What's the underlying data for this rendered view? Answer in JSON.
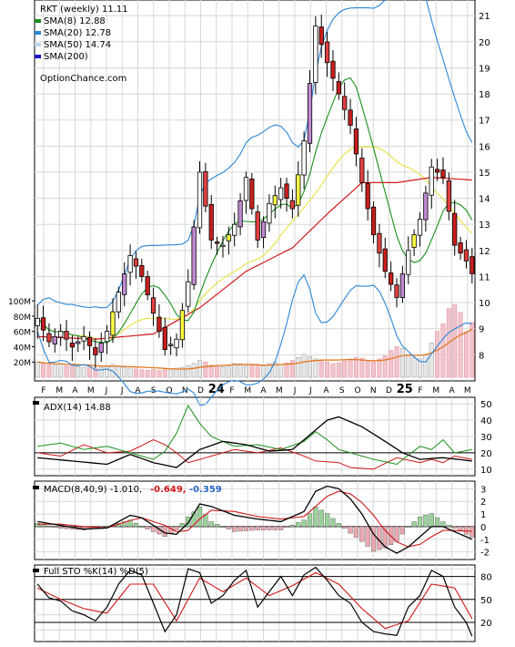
{
  "chart_data": [
    {
      "type": "candlestick",
      "title": "RKT (weekly) 11.11",
      "legend": [
        {
          "label": "SMA(8) 12.88",
          "color": "#1a8f1a"
        },
        {
          "label": "SMA(20) 12.78",
          "color": "#2a86d8"
        },
        {
          "label": "SMA(50) 14.74",
          "color": "#b8d8f0"
        },
        {
          "label": "SMA(200)",
          "color": "#1818c8"
        }
      ],
      "watermark": "OptionChance.com",
      "legend_placement": "top-left",
      "y_ticks": [
        8,
        9,
        10,
        11,
        12,
        13,
        14,
        15,
        16,
        17,
        18,
        19,
        20,
        21
      ],
      "ylim": [
        7,
        21.6
      ],
      "y_axis_side": "right",
      "price_anchors": [
        [
          0,
          9.4
        ],
        [
          2,
          8.5
        ],
        [
          4,
          8.9
        ],
        [
          6,
          8.3
        ],
        [
          8,
          8.7
        ],
        [
          10,
          8.0
        ],
        [
          12,
          8.9
        ],
        [
          14,
          10.4
        ],
        [
          16,
          11.8
        ],
        [
          18,
          11.0
        ],
        [
          20,
          9.6
        ],
        [
          22,
          8.2
        ],
        [
          24,
          8.6
        ],
        [
          26,
          10.8
        ],
        [
          28,
          15.0
        ],
        [
          30,
          12.4
        ],
        [
          32,
          12.2
        ],
        [
          34,
          13.0
        ],
        [
          36,
          14.8
        ],
        [
          38,
          12.4
        ],
        [
          40,
          13.8
        ],
        [
          42,
          14.4
        ],
        [
          44,
          13.6
        ],
        [
          46,
          16.2
        ],
        [
          48,
          20.6
        ],
        [
          50,
          19.2
        ],
        [
          52,
          18.0
        ],
        [
          54,
          16.8
        ],
        [
          56,
          14.6
        ],
        [
          58,
          12.6
        ],
        [
          60,
          11.2
        ],
        [
          62,
          10.2
        ],
        [
          64,
          12.0
        ],
        [
          66,
          13.2
        ],
        [
          68,
          15.2
        ],
        [
          70,
          14.8
        ],
        [
          72,
          12.2
        ],
        [
          74,
          11.6
        ],
        [
          75,
          11.11
        ]
      ],
      "sma200_anchors": [
        [
          0,
          8.7
        ],
        [
          10,
          8.6
        ],
        [
          20,
          8.8
        ],
        [
          28,
          9.8
        ],
        [
          36,
          11.2
        ],
        [
          44,
          12.1
        ],
        [
          50,
          13.4
        ],
        [
          56,
          14.6
        ],
        [
          62,
          14.6
        ],
        [
          68,
          14.8
        ],
        [
          75,
          14.7
        ]
      ],
      "volume_ticks": [
        "20M",
        "40M",
        "60M",
        "80M",
        "100M"
      ],
      "volume_max": 105,
      "volume_values": [
        20,
        18,
        17,
        16,
        17,
        15,
        16,
        14,
        13,
        14,
        12,
        13,
        15,
        17,
        15,
        13,
        12,
        11,
        10,
        9,
        10,
        9,
        10,
        11,
        12,
        13,
        15,
        18,
        22,
        20,
        16,
        15,
        14,
        15,
        18,
        16,
        15,
        16,
        17,
        15,
        18,
        20,
        17,
        19,
        22,
        26,
        30,
        27,
        24,
        22,
        20,
        18,
        19,
        21,
        24,
        26,
        25,
        22,
        20,
        24,
        28,
        35,
        40,
        38,
        30,
        26,
        24,
        30,
        45,
        60,
        70,
        90,
        95,
        85,
        60,
        72
      ],
      "x_labels": [
        "F",
        "M",
        "A",
        "M",
        "J",
        "J",
        "A",
        "S",
        "O",
        "N",
        "D",
        "24",
        "F",
        "M",
        "A",
        "M",
        "J",
        "J",
        "A",
        "S",
        "O",
        "N",
        "D",
        "25",
        "F",
        "M",
        "A",
        "M"
      ]
    },
    {
      "type": "line",
      "title": "ADX(14) 14.88",
      "y_ticks": [
        10,
        20,
        30,
        40,
        50
      ],
      "ylim": [
        6,
        54
      ],
      "adx_anchors": [
        [
          0,
          17
        ],
        [
          6,
          15
        ],
        [
          12,
          13
        ],
        [
          16,
          19
        ],
        [
          20,
          14
        ],
        [
          24,
          11
        ],
        [
          28,
          22
        ],
        [
          32,
          27
        ],
        [
          36,
          25
        ],
        [
          40,
          21
        ],
        [
          44,
          22
        ],
        [
          48,
          34
        ],
        [
          50,
          40
        ],
        [
          52,
          42
        ],
        [
          56,
          36
        ],
        [
          60,
          27
        ],
        [
          63,
          20
        ],
        [
          66,
          16
        ],
        [
          70,
          17
        ],
        [
          75,
          15
        ]
      ],
      "dip_anchors": [
        [
          0,
          24
        ],
        [
          4,
          26
        ],
        [
          8,
          22
        ],
        [
          12,
          24
        ],
        [
          16,
          20
        ],
        [
          20,
          16
        ],
        [
          22,
          21
        ],
        [
          24,
          32
        ],
        [
          26,
          49
        ],
        [
          28,
          38
        ],
        [
          30,
          30
        ],
        [
          34,
          24
        ],
        [
          38,
          25
        ],
        [
          42,
          22
        ],
        [
          46,
          27
        ],
        [
          48,
          33
        ],
        [
          50,
          28
        ],
        [
          52,
          22
        ],
        [
          54,
          20
        ],
        [
          56,
          18
        ],
        [
          58,
          16
        ],
        [
          62,
          13
        ],
        [
          66,
          24
        ],
        [
          68,
          22
        ],
        [
          70,
          28
        ],
        [
          72,
          20
        ],
        [
          75,
          22
        ]
      ],
      "dim_anchors": [
        [
          0,
          20
        ],
        [
          4,
          18
        ],
        [
          8,
          25
        ],
        [
          12,
          20
        ],
        [
          16,
          21
        ],
        [
          20,
          28
        ],
        [
          22,
          25
        ],
        [
          24,
          20
        ],
        [
          26,
          14
        ],
        [
          30,
          18
        ],
        [
          34,
          22
        ],
        [
          38,
          20
        ],
        [
          42,
          23
        ],
        [
          46,
          18
        ],
        [
          48,
          15
        ],
        [
          52,
          14
        ],
        [
          54,
          11
        ],
        [
          58,
          10
        ],
        [
          62,
          17
        ],
        [
          66,
          14
        ],
        [
          68,
          16
        ],
        [
          70,
          14
        ],
        [
          72,
          18
        ],
        [
          75,
          16
        ]
      ]
    },
    {
      "type": "line",
      "title": "MACD(8,40,9) -1.010,",
      "macd_value": "-0.649,",
      "signal_value": "-0.359",
      "y_ticks": [
        "-2",
        "-1",
        "0",
        "1",
        "2",
        "3"
      ],
      "ylim": [
        -2.6,
        3.6
      ],
      "macd_anchors": [
        [
          0,
          0.4
        ],
        [
          4,
          0.1
        ],
        [
          8,
          -0.2
        ],
        [
          12,
          -0.1
        ],
        [
          16,
          0.9
        ],
        [
          18,
          0.7
        ],
        [
          22,
          -0.5
        ],
        [
          24,
          -0.6
        ],
        [
          26,
          0.3
        ],
        [
          28,
          1.8
        ],
        [
          30,
          1.6
        ],
        [
          34,
          0.9
        ],
        [
          38,
          0.6
        ],
        [
          42,
          0.4
        ],
        [
          46,
          1.2
        ],
        [
          48,
          2.8
        ],
        [
          50,
          3.2
        ],
        [
          52,
          3.0
        ],
        [
          54,
          2.2
        ],
        [
          56,
          1.0
        ],
        [
          58,
          -0.6
        ],
        [
          60,
          -1.6
        ],
        [
          62,
          -2.1
        ],
        [
          64,
          -1.6
        ],
        [
          66,
          -0.8
        ],
        [
          68,
          0.0
        ],
        [
          70,
          0.0
        ],
        [
          72,
          -0.4
        ],
        [
          75,
          -1.0
        ]
      ],
      "signal_anchors": [
        [
          0,
          0.2
        ],
        [
          4,
          0.2
        ],
        [
          8,
          0.0
        ],
        [
          12,
          -0.1
        ],
        [
          16,
          0.5
        ],
        [
          18,
          0.7
        ],
        [
          22,
          0.1
        ],
        [
          24,
          -0.4
        ],
        [
          26,
          -0.3
        ],
        [
          28,
          0.6
        ],
        [
          30,
          1.3
        ],
        [
          34,
          1.2
        ],
        [
          38,
          0.8
        ],
        [
          42,
          0.6
        ],
        [
          46,
          0.8
        ],
        [
          48,
          1.6
        ],
        [
          50,
          2.4
        ],
        [
          52,
          2.8
        ],
        [
          54,
          2.6
        ],
        [
          56,
          1.9
        ],
        [
          58,
          0.9
        ],
        [
          60,
          -0.3
        ],
        [
          62,
          -1.2
        ],
        [
          64,
          -1.6
        ],
        [
          66,
          -1.4
        ],
        [
          68,
          -0.8
        ],
        [
          70,
          -0.3
        ],
        [
          72,
          -0.3
        ],
        [
          75,
          -0.36
        ]
      ],
      "histogram_colors": {
        "up": "#9ad29a",
        "down": "#eaa8b0"
      }
    },
    {
      "type": "line",
      "title": "Full STO %K(14) %D(5)",
      "y_ticks": [
        20,
        50,
        80
      ],
      "ylim": [
        -5,
        95
      ],
      "k_anchors": [
        [
          0,
          70
        ],
        [
          2,
          52
        ],
        [
          4,
          48
        ],
        [
          6,
          35
        ],
        [
          8,
          30
        ],
        [
          10,
          22
        ],
        [
          12,
          40
        ],
        [
          14,
          70
        ],
        [
          16,
          88
        ],
        [
          18,
          82
        ],
        [
          20,
          45
        ],
        [
          22,
          8
        ],
        [
          24,
          30
        ],
        [
          26,
          90
        ],
        [
          28,
          85
        ],
        [
          30,
          45
        ],
        [
          32,
          55
        ],
        [
          34,
          75
        ],
        [
          36,
          88
        ],
        [
          38,
          40
        ],
        [
          40,
          60
        ],
        [
          42,
          80
        ],
        [
          44,
          55
        ],
        [
          46,
          82
        ],
        [
          48,
          92
        ],
        [
          50,
          75
        ],
        [
          52,
          55
        ],
        [
          54,
          45
        ],
        [
          56,
          20
        ],
        [
          58,
          8
        ],
        [
          60,
          5
        ],
        [
          62,
          3
        ],
        [
          64,
          40
        ],
        [
          66,
          55
        ],
        [
          68,
          88
        ],
        [
          70,
          80
        ],
        [
          72,
          40
        ],
        [
          74,
          20
        ],
        [
          75,
          2
        ]
      ],
      "d_anchors": [
        [
          0,
          65
        ],
        [
          4,
          50
        ],
        [
          8,
          38
        ],
        [
          12,
          32
        ],
        [
          16,
          70
        ],
        [
          20,
          70
        ],
        [
          24,
          22
        ],
        [
          28,
          78
        ],
        [
          32,
          60
        ],
        [
          36,
          78
        ],
        [
          40,
          55
        ],
        [
          44,
          68
        ],
        [
          48,
          85
        ],
        [
          52,
          70
        ],
        [
          56,
          38
        ],
        [
          60,
          12
        ],
        [
          64,
          22
        ],
        [
          68,
          70
        ],
        [
          72,
          65
        ],
        [
          75,
          25
        ]
      ]
    }
  ]
}
